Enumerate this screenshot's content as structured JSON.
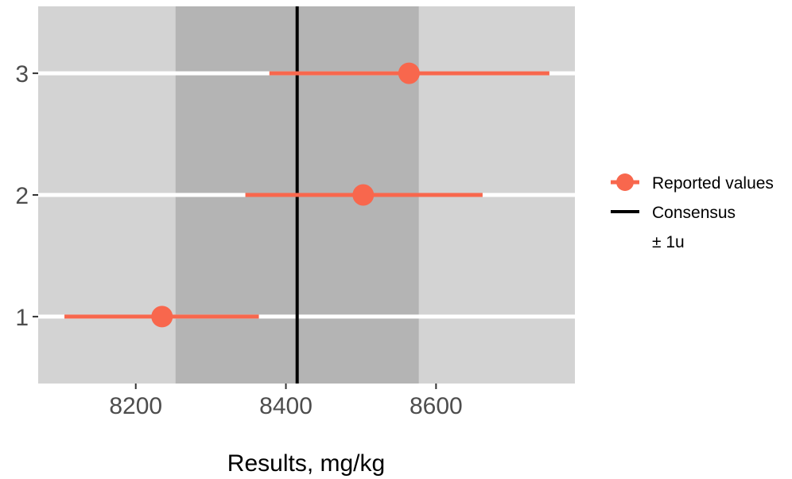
{
  "chart_data": {
    "type": "scatter",
    "title": "",
    "xlabel": "Results, mg/kg",
    "ylabel": "",
    "xlim": [
      8070,
      8785
    ],
    "ylim": [
      0.45,
      3.55
    ],
    "x_ticks": [
      8200,
      8400,
      8600
    ],
    "y_ticks": [
      1,
      2,
      3
    ],
    "grid": true,
    "legend_position": "right",
    "colors": {
      "panel": "#d3d3d3",
      "band": "#b4b4b4",
      "grid": "#ffffff",
      "points": "#f8674d",
      "consensus": "#000000"
    },
    "consensus": {
      "value": 8415,
      "uncertainty_low": 8253,
      "uncertainty_high": 8577
    },
    "series": [
      {
        "name": "Reported values",
        "points": [
          {
            "y": 1,
            "x": 8235,
            "xmin": 8105,
            "xmax": 8364
          },
          {
            "y": 2,
            "x": 8503,
            "xmin": 8346,
            "xmax": 8662
          },
          {
            "y": 3,
            "x": 8564,
            "xmin": 8378,
            "xmax": 8751
          }
        ]
      }
    ],
    "legend": [
      {
        "label": "Reported values",
        "symbol": "point-line"
      },
      {
        "label": "Consensus",
        "symbol": "line"
      },
      {
        "label": "± 1u",
        "symbol": "none"
      }
    ]
  }
}
